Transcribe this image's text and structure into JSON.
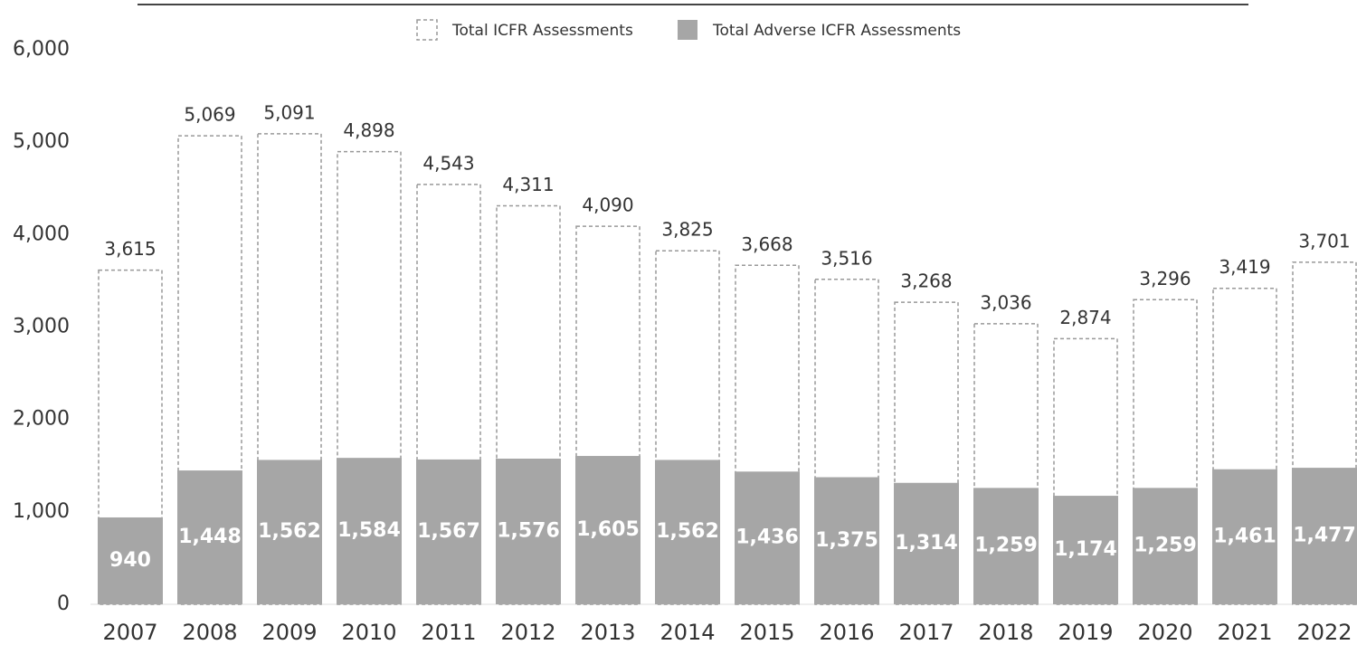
{
  "chart_data": {
    "type": "bar",
    "categories": [
      "2007",
      "2008",
      "2009",
      "2010",
      "2011",
      "2012",
      "2013",
      "2014",
      "2015",
      "2016",
      "2017",
      "2018",
      "2019",
      "2020",
      "2021",
      "2022"
    ],
    "series": [
      {
        "name": "Total ICFR Assessments",
        "color": "#999999",
        "values": [
          3615,
          5069,
          5091,
          4898,
          4543,
          4311,
          4090,
          3825,
          3668,
          3516,
          3268,
          3036,
          2874,
          3296,
          3419,
          3701
        ],
        "value_labels": [
          "3,615",
          "5,069",
          "5,091",
          "4,898",
          "4,543",
          "4,311",
          "4,090",
          "3,825",
          "3,668",
          "3,516",
          "3,268",
          "3,036",
          "2,874",
          "3,296",
          "3,419",
          "3,701"
        ]
      },
      {
        "name": "Total Adverse ICFR Assessments",
        "color": "#a6a6a6",
        "values": [
          940,
          1448,
          1562,
          1584,
          1567,
          1576,
          1605,
          1562,
          1436,
          1375,
          1314,
          1259,
          1174,
          1259,
          1461,
          1477
        ],
        "value_labels": [
          "940",
          "1,448",
          "1,562",
          "1,584",
          "1,567",
          "1,576",
          "1,605",
          "1,562",
          "1,436",
          "1,375",
          "1,314",
          "1,259",
          "1,174",
          "1,259",
          "1,461",
          "1,477"
        ]
      }
    ],
    "ylim": [
      0,
      6000
    ],
    "yticks": [
      0,
      {
        "value": 1000,
        "label": "1,000"
      },
      {
        "value": 2000,
        "label": "2,000"
      },
      {
        "value": 3000,
        "label": "3,000"
      },
      {
        "value": 4000,
        "label": "4,000"
      },
      {
        "value": 5000,
        "label": "5,000"
      },
      {
        "value": 6000,
        "label": "6,000"
      }
    ]
  }
}
